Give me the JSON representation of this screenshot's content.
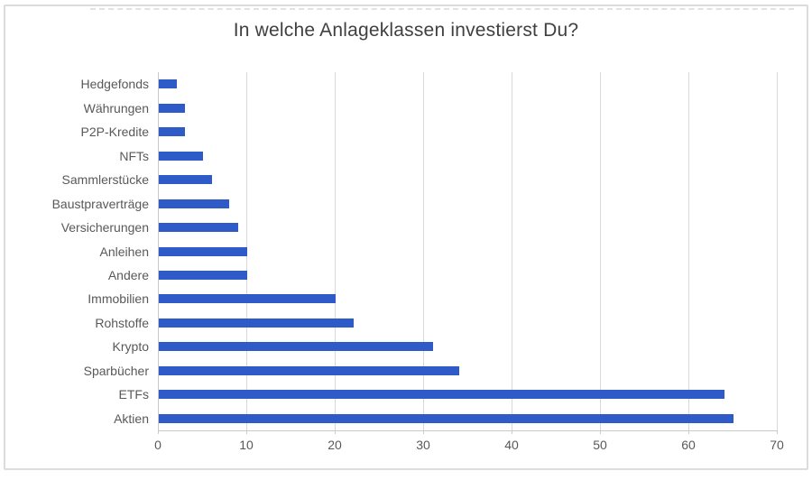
{
  "frame": {
    "border_color": "#dcdcdc",
    "top_dashed_line_color": "#e2e2e2",
    "background": "#ffffff"
  },
  "chart_data": {
    "type": "bar",
    "orientation": "horizontal",
    "title": "In welche Anlageklassen investierst Du?",
    "categories": [
      "Hedgefonds",
      "Währungen",
      "P2P-Kredite",
      "NFTs",
      "Sammlerstücke",
      "Baustpraverträge",
      "Versicherungen",
      "Anleihen",
      "Andere",
      "Immobilien",
      "Rohstoffe",
      "Krypto",
      "Sparbücher",
      "ETFs",
      "Aktien"
    ],
    "values": [
      2,
      3,
      3,
      5,
      6,
      8,
      9,
      10,
      10,
      20,
      22,
      31,
      34,
      64,
      65
    ],
    "xlabel": "",
    "ylabel": "",
    "xlim": [
      0,
      70
    ],
    "xticks": [
      0,
      10,
      20,
      30,
      40,
      50,
      60,
      70
    ],
    "grid": true,
    "legend": false,
    "colors": {
      "bar": "#2e5bc8",
      "gridline": "#d9d9d9",
      "axis_line": "#c9c9c9",
      "tick_label": "#595959",
      "category_label": "#595959",
      "title": "#404040"
    }
  }
}
